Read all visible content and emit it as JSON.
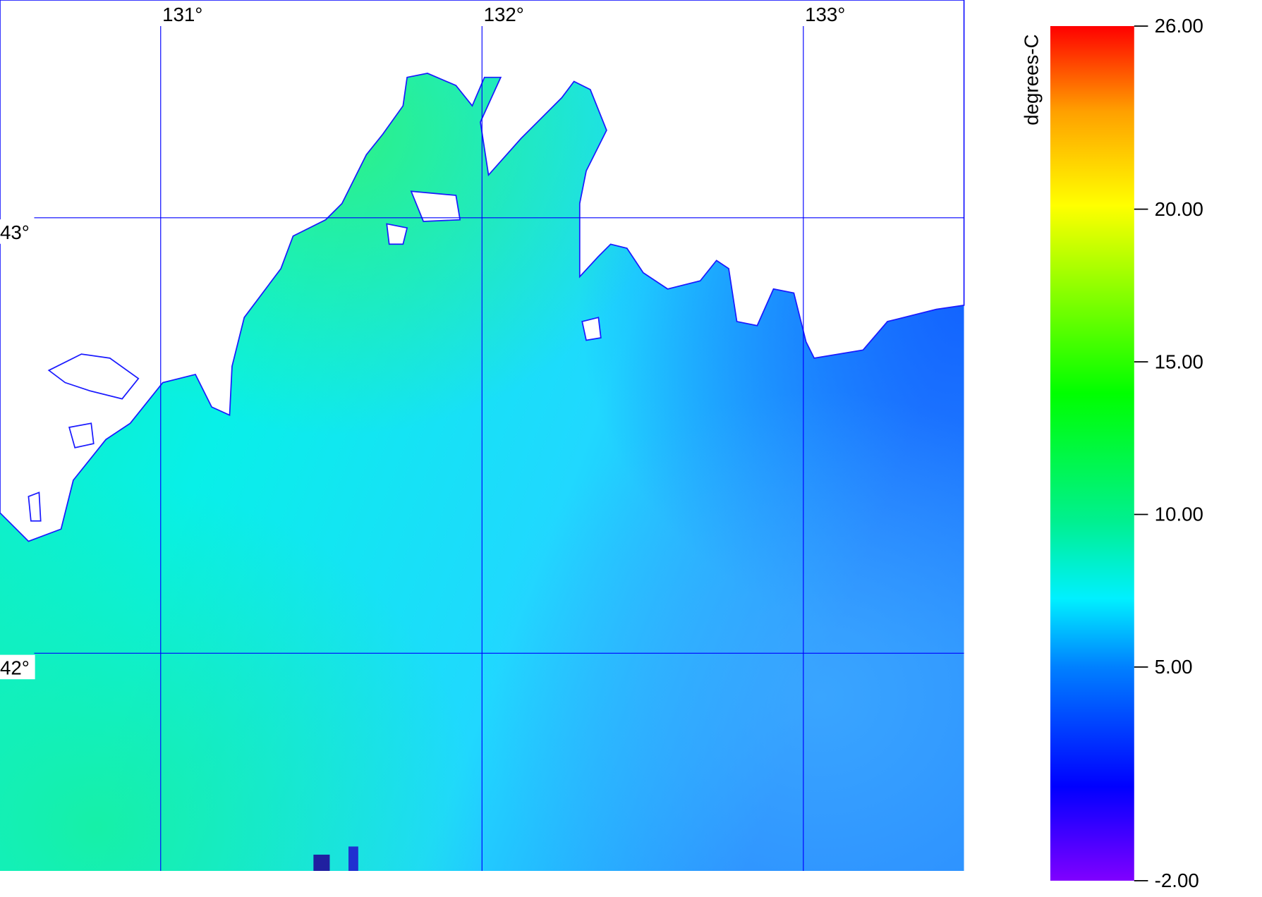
{
  "map": {
    "lon_range": [
      130.5,
      133.5
    ],
    "lat_range": [
      41.5,
      43.5
    ],
    "lon_ticks": [
      {
        "value": 131,
        "label": "131°"
      },
      {
        "value": 132,
        "label": "132°"
      },
      {
        "value": 133,
        "label": "133°"
      }
    ],
    "lat_ticks": [
      {
        "value": 43,
        "label": "43°"
      },
      {
        "value": 42,
        "label": "42°"
      }
    ],
    "grid_color": "#0000ff",
    "colorbar": {
      "label": "degrees-C",
      "range": [
        -2,
        26
      ],
      "ticks": [
        {
          "value": 26,
          "label": "26.00"
        },
        {
          "value": 20,
          "label": "20.00"
        },
        {
          "value": 15,
          "label": "15.00"
        },
        {
          "value": 10,
          "label": "10.00"
        },
        {
          "value": 5,
          "label": "5.00"
        },
        {
          "value": -2,
          "label": "-2.00"
        }
      ]
    }
  }
}
